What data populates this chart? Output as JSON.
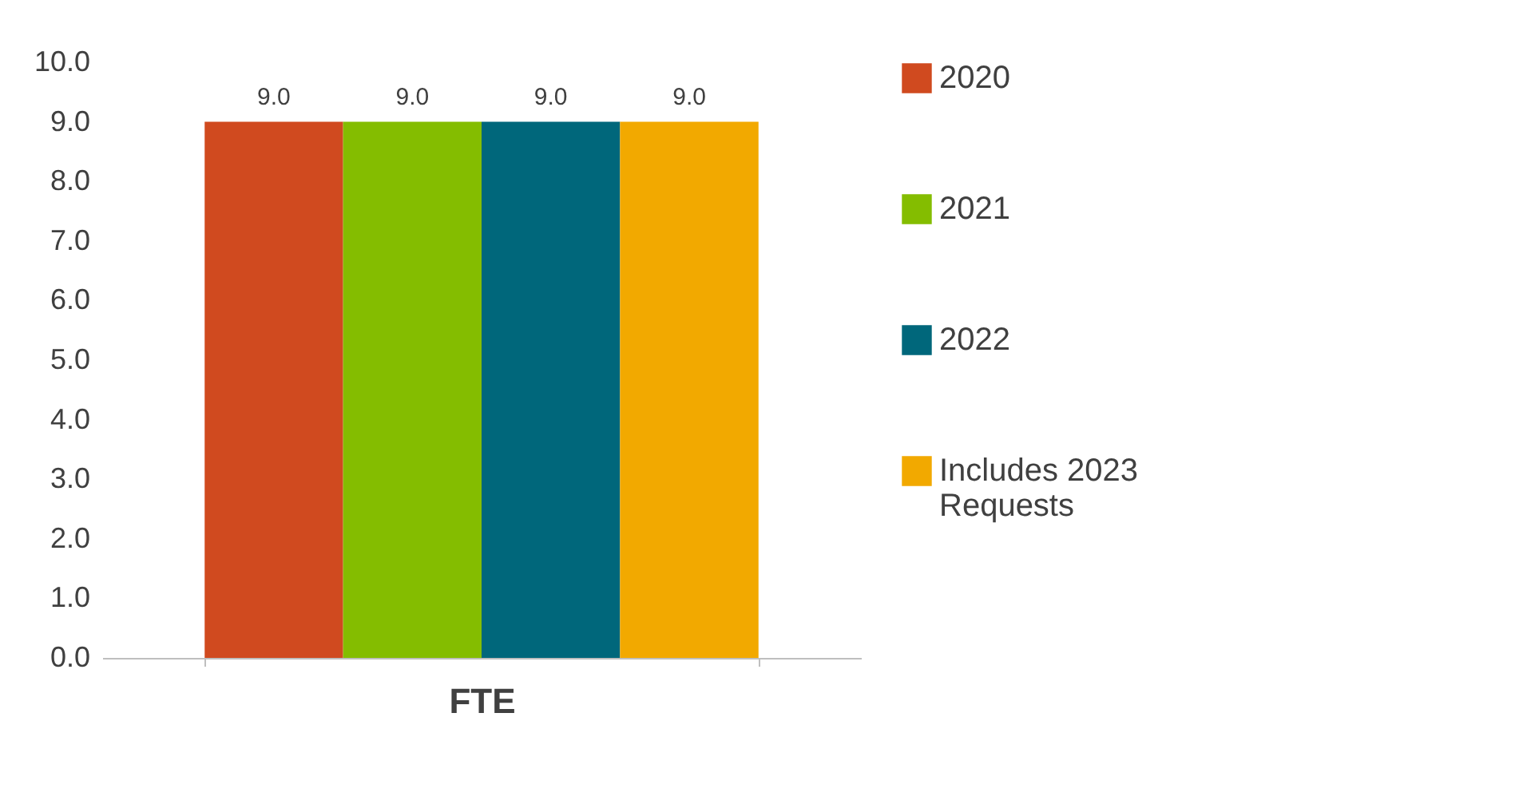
{
  "chart_data": {
    "type": "bar",
    "categories": [
      "FTE"
    ],
    "series": [
      {
        "name": "2020",
        "color": "#d04a1f",
        "values": [
          9.0
        ],
        "value_labels": [
          "9.0"
        ]
      },
      {
        "name": "2021",
        "color": "#84bd00",
        "values": [
          9.0
        ],
        "value_labels": [
          "9.0"
        ]
      },
      {
        "name": "2022",
        "color": "#00677b",
        "values": [
          9.0
        ],
        "value_labels": [
          "9.0"
        ]
      },
      {
        "name": "Includes 2023 Requests",
        "color": "#f2a900",
        "values": [
          9.0
        ],
        "value_labels": [
          "9.0"
        ]
      }
    ],
    "ylim": [
      0,
      10
    ],
    "yticks": [
      {
        "value": 0,
        "label": "0.0"
      },
      {
        "value": 1,
        "label": "1.0"
      },
      {
        "value": 2,
        "label": "2.0"
      },
      {
        "value": 3,
        "label": "3.0"
      },
      {
        "value": 4,
        "label": "4.0"
      },
      {
        "value": 5,
        "label": "5.0"
      },
      {
        "value": 6,
        "label": "6.0"
      },
      {
        "value": 7,
        "label": "7.0"
      },
      {
        "value": 8,
        "label": "8.0"
      },
      {
        "value": 9,
        "label": "9.0"
      },
      {
        "value": 10,
        "label": "10.0"
      }
    ],
    "grid": false,
    "legend": "right"
  }
}
